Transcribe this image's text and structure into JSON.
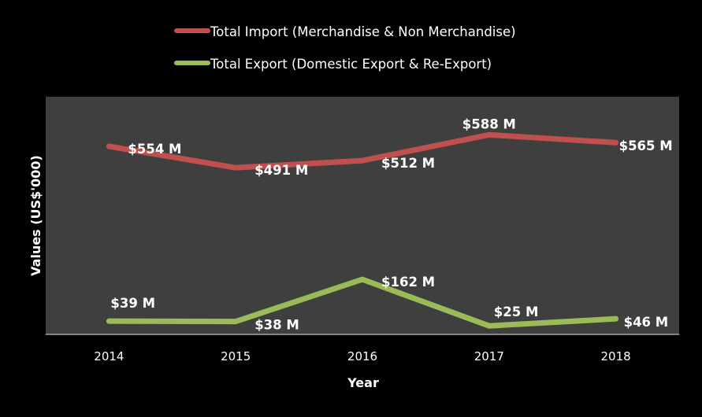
{
  "chart_data": {
    "type": "line",
    "title": "",
    "xlabel": "Year",
    "ylabel": "Values (US$'000)",
    "categories": [
      "2014",
      "2015",
      "2016",
      "2017",
      "2018"
    ],
    "ylim": [
      0,
      700
    ],
    "grid": false,
    "legend_position": "top",
    "background": "#3f3f3f",
    "series": [
      {
        "name": "Total Import (Merchandise & Non Merchandise)",
        "color": "#c0504d",
        "values": [
          554,
          491,
          512,
          588,
          565
        ],
        "labels": [
          "$554 M",
          "$491 M",
          "$512 M",
          "$588 M",
          "$565 M"
        ]
      },
      {
        "name": "Total Export (Domestic Export & Re-Export)",
        "color": "#9bbb59",
        "values": [
          39,
          38,
          162,
          25,
          46
        ],
        "labels": [
          "$39 M",
          "$38 M",
          "$162 M",
          "$25 M",
          "$46 M"
        ]
      }
    ]
  }
}
